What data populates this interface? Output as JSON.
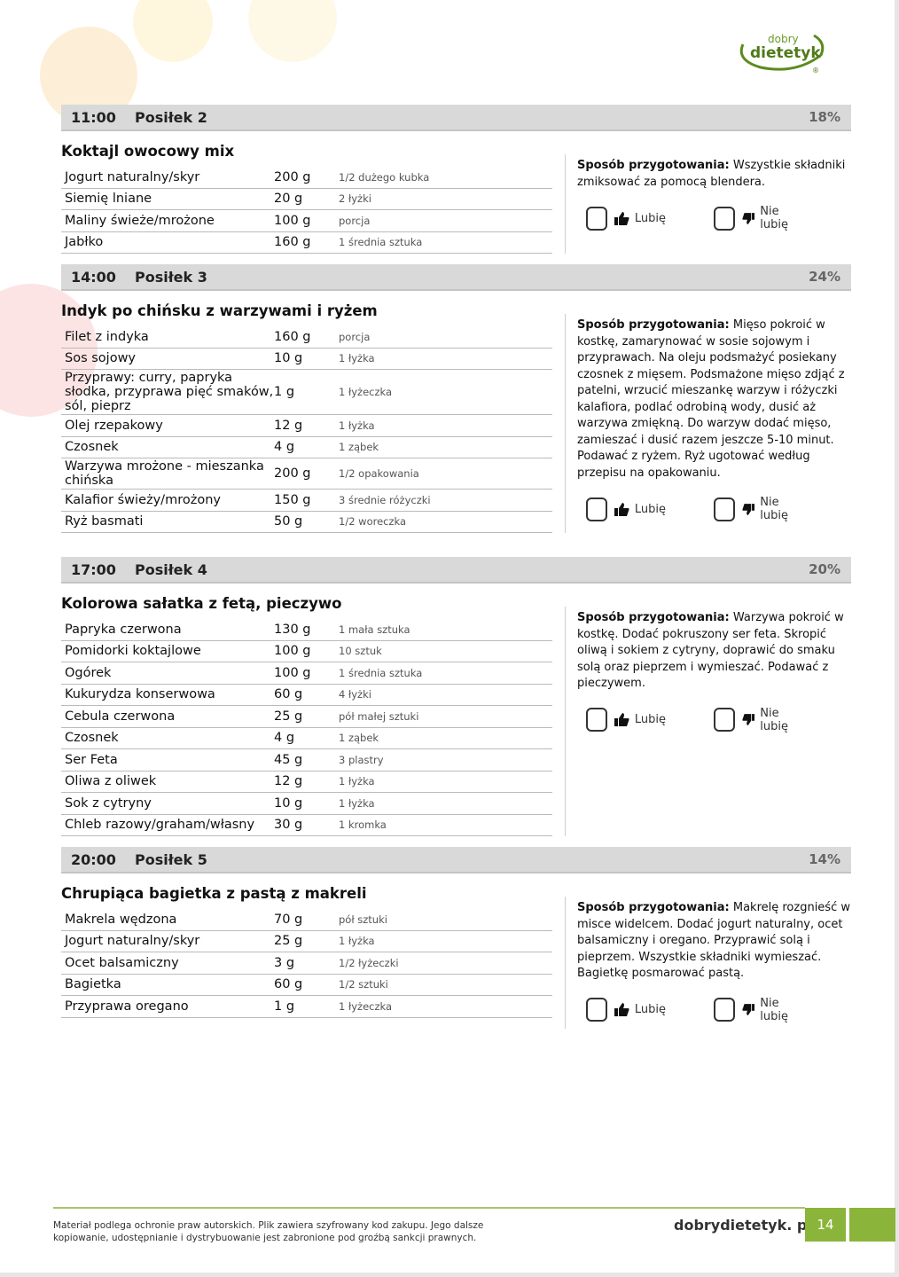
{
  "logo": {
    "line1": "dobry",
    "line2": "dietetyk",
    "mark": "®"
  },
  "like_label": "Lubię",
  "dislike_label": "Nie lubię",
  "prep_label": "Sposób przygotowania:",
  "meals": [
    {
      "time": "11:00",
      "name": "Posiłek 2",
      "pct": "18%",
      "title": "Koktajl owocowy mix",
      "rows": [
        [
          "Jogurt naturalny/skyr",
          "200 g",
          "1/2 dużego kubka"
        ],
        [
          "Siemię lniane",
          "20 g",
          "2 łyżki"
        ],
        [
          "Maliny świeże/mrożone",
          "100 g",
          "porcja"
        ],
        [
          "Jabłko",
          "160 g",
          "1 średnia sztuka"
        ]
      ],
      "prep": "Wszystkie składniki zmiksować za pomocą blendera."
    },
    {
      "time": "14:00",
      "name": "Posiłek 3",
      "pct": "24%",
      "title": "Indyk po chińsku z warzywami i ryżem",
      "rows": [
        [
          "Filet z indyka",
          "160 g",
          "porcja"
        ],
        [
          "Sos sojowy",
          "10 g",
          "1 łyżka"
        ],
        [
          "Przyprawy: curry, papryka słodka, przyprawa pięć smaków, sól, pieprz",
          "1 g",
          "1 łyżeczka"
        ],
        [
          "Olej rzepakowy",
          "12 g",
          "1 łyżka"
        ],
        [
          "Czosnek",
          "4 g",
          "1 ząbek"
        ],
        [
          "Warzywa mrożone - mieszanka chińska",
          "200 g",
          "1/2 opakowania"
        ],
        [
          "Kalafior świeży/mrożony",
          "150 g",
          "3 średnie różyczki"
        ],
        [
          "Ryż basmati",
          "50 g",
          "1/2 woreczka"
        ]
      ],
      "prep": "Mięso pokroić w kostkę, zamarynować w sosie sojowym i przyprawach. Na oleju podsmażyć posiekany czosnek z mięsem. Podsmażone mięso zdjąć z patelni, wrzucić mieszankę warzyw i różyczki kalafiora, podlać odrobiną wody, dusić aż warzywa zmiękną. Do warzyw dodać mięso, zamieszać i dusić razem jeszcze 5-10 minut. Podawać z ryżem. Ryż ugotować według przepisu na opakowaniu."
    },
    {
      "time": "17:00",
      "name": "Posiłek 4",
      "pct": "20%",
      "title": "Kolorowa sałatka z fetą, pieczywo",
      "rows": [
        [
          "Papryka czerwona",
          "130 g",
          "1 mała sztuka"
        ],
        [
          "Pomidorki koktajlowe",
          "100 g",
          "10 sztuk"
        ],
        [
          "Ogórek",
          "100 g",
          "1 średnia sztuka"
        ],
        [
          "Kukurydza konserwowa",
          "60 g",
          "4 łyżki"
        ],
        [
          "Cebula czerwona",
          "25 g",
          "pół małej sztuki"
        ],
        [
          "Czosnek",
          "4 g",
          "1 ząbek"
        ],
        [
          "Ser Feta",
          "45 g",
          "3 plastry"
        ],
        [
          "Oliwa z oliwek",
          "12 g",
          "1 łyżka"
        ],
        [
          "Sok z cytryny",
          "10 g",
          "1 łyżka"
        ],
        [
          "Chleb razowy/graham/własny",
          "30 g",
          "1 kromka"
        ]
      ],
      "prep": "Warzywa pokroić w kostkę. Dodać pokruszony ser feta. Skropić oliwą i sokiem z cytryny, doprawić do smaku solą oraz pieprzem i wymieszać. Podawać z pieczywem."
    },
    {
      "time": "20:00",
      "name": "Posiłek 5",
      "pct": "14%",
      "title": "Chrupiąca bagietka z pastą z makreli",
      "rows": [
        [
          "Makrela wędzona",
          "70 g",
          "pół sztuki"
        ],
        [
          "Jogurt naturalny/skyr",
          "25 g",
          "1 łyżka"
        ],
        [
          "Ocet balsamiczny",
          "3 g",
          "1/2 łyżeczki"
        ],
        [
          "Bagietka",
          "60 g",
          "1/2 sztuki"
        ],
        [
          "Przyprawa oregano",
          "1 g",
          "1 łyżeczka"
        ]
      ],
      "prep": "Makrelę rozgnieść w misce widelcem. Dodać jogurt naturalny, ocet balsamiczny i oregano. Przyprawić solą i pieprzem. Wszystkie składniki wymieszać. Bagietkę posmarować pastą."
    }
  ],
  "footer": {
    "note1": "Materiał podlega ochronie praw autorskich. Plik zawiera szyfrowany kod zakupu. Jego dalsze",
    "note2": "kopiowanie, udostępnianie i dystrybuowanie jest zabronione pod groźbą sankcji prawnych.",
    "site": "dobrydietetyk. pl",
    "page": "14"
  },
  "colors": {
    "accent": "#8bb43a",
    "header_bar": "#d9d9d9"
  }
}
